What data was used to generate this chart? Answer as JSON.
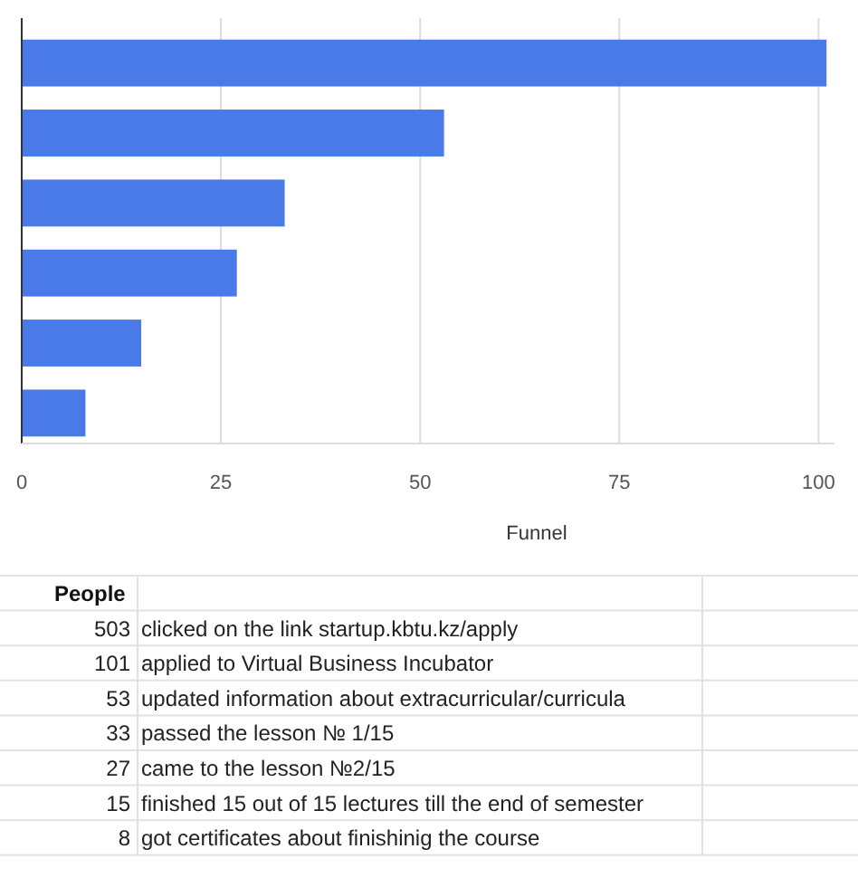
{
  "chart_data": {
    "type": "bar",
    "orientation": "horizontal",
    "categories": [
      null,
      null,
      null,
      null,
      null,
      null
    ],
    "values": [
      101,
      53,
      33,
      27,
      15,
      8
    ],
    "color": "#4a7ae8",
    "xlim": [
      0,
      102
    ],
    "xticks": [
      0,
      25,
      50,
      75,
      100
    ],
    "xlabel": "Funnel",
    "grid": "x",
    "annotations": [
      "People",
      "503 clicked on the link startup.kbtu.kz/apply",
      "101 applied to Virtual Business Incubator",
      "53 updated information about extracurricular/curricula",
      "33 passed the lesson № 1/15",
      "27 came to the lesson №2/15",
      "15 finished 15 out of 15 lectures till the end of semester",
      "8 got certificates about finishinig the course"
    ]
  }
}
